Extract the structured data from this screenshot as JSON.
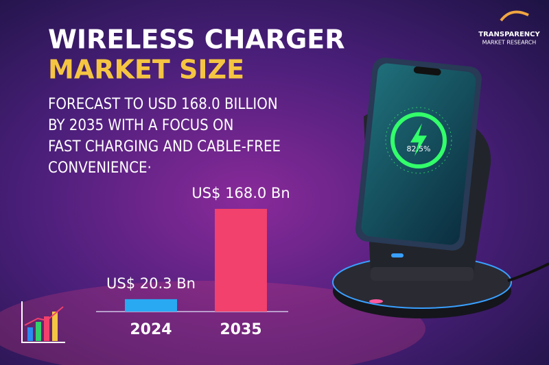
{
  "chart_data": {
    "type": "bar",
    "title": "WIRELESS CHARGER",
    "subtitle": "MARKET SIZE",
    "description": [
      "FORECAST TO USD 168.0 BILLION",
      "BY 2035 WITH A FOCUS ON",
      "FAST CHARGING AND CABLE-FREE",
      "CONVENIENCE·"
    ],
    "categories": [
      "2024",
      "2035"
    ],
    "values": [
      20.3,
      168.0
    ],
    "value_labels": [
      "US$ 20.3 Bn",
      "US$ 168.0 Bn"
    ],
    "colors": [
      "#29a9f2",
      "#f2416c"
    ]
  },
  "logo": {
    "name": "TRANSPARENCY",
    "tagline": "MARKET RESEARCH"
  },
  "phone_display": "82.5%"
}
